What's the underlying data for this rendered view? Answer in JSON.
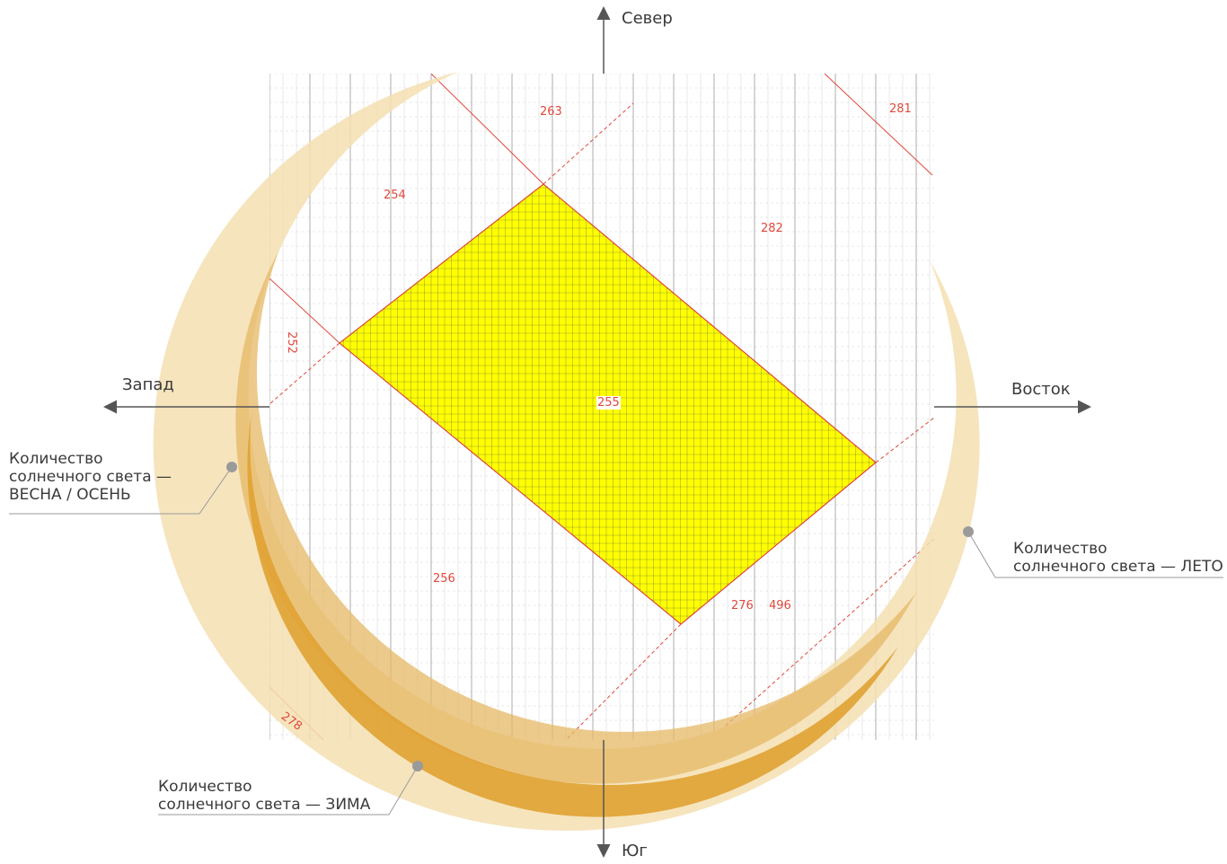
{
  "directions": {
    "north": "Север",
    "south": "Юг",
    "west": "Запад",
    "east": "Восток"
  },
  "seasons": {
    "spring_autumn": {
      "line1": "Количество",
      "line2": "солнечного света —",
      "line3": "ВЕСНА / ОСЕНЬ"
    },
    "summer": {
      "line1": "Количество",
      "line2": "солнечного света — ЛЕТО"
    },
    "winter": {
      "line1": "Количество",
      "line2": "солнечного света — ЗИМА"
    }
  },
  "plots": {
    "p263": "263",
    "p281": "281",
    "p254": "254",
    "p282": "282",
    "p255": "255",
    "p256": "256",
    "p276": "276",
    "p496": "496",
    "p278": "278",
    "p252": "252"
  },
  "colors": {
    "highlighted_plot": "#ffff00",
    "plot_border": "#e0483c",
    "winter_band": "#e3a73b",
    "spring_autumn_band": "#edc982",
    "summer_band": "#f4dfb2",
    "grid": "#8c8c8c"
  }
}
